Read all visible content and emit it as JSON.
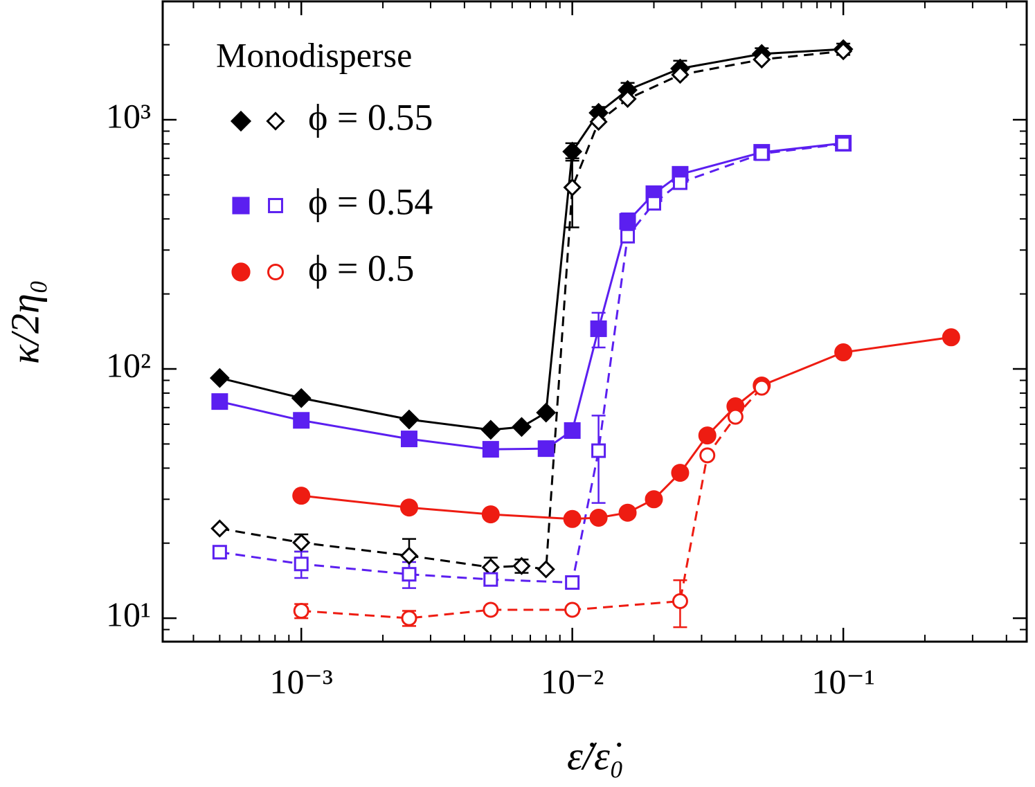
{
  "chart_data": {
    "type": "line",
    "xlabel": "ε̇/ε̇₀",
    "ylabel": "κ/2η₀",
    "legend_title": "Monodisperse",
    "legend_loc": "upper left",
    "xscale": "log",
    "yscale": "log",
    "xlim": [
      0.000308,
      0.475
    ],
    "ylim": [
      8.05,
      2985
    ],
    "xticks": [
      {
        "value": 0.001,
        "label": "10⁻³"
      },
      {
        "value": 0.01,
        "label": "10⁻²"
      },
      {
        "value": 0.1,
        "label": "10⁻¹"
      }
    ],
    "yticks": [
      {
        "value": 10,
        "label": "10¹"
      },
      {
        "value": 100,
        "label": "10²"
      },
      {
        "value": 1000,
        "label": "10³"
      }
    ],
    "series": [
      {
        "name": "ϕ = 0.55",
        "color": "#000000",
        "marker": "diamond",
        "filled": true,
        "linestyle": "solid",
        "x": [
          0.0005,
          0.001,
          0.0025,
          0.005,
          0.0065,
          0.008,
          0.01,
          0.0125,
          0.016,
          0.025,
          0.05,
          0.1
        ],
        "values": [
          92,
          76.4,
          62.7,
          57,
          58.5,
          66.8,
          745,
          1066,
          1316,
          1605,
          1837,
          1920
        ],
        "errors": [
          null,
          null,
          null,
          null,
          null,
          null,
          60,
          60,
          90,
          120,
          100,
          100
        ]
      },
      {
        "name": "ϕ = 0.55",
        "color": "#000000",
        "marker": "diamond",
        "filled": false,
        "linestyle": "dashed",
        "x": [
          0.0005,
          0.001,
          0.0025,
          0.005,
          0.0065,
          0.008,
          0.01,
          0.0125,
          0.016,
          0.025,
          0.05,
          0.1
        ],
        "values": [
          22.9,
          20.1,
          17.8,
          16,
          16.2,
          15.7,
          535,
          981,
          1212,
          1515,
          1745,
          1884
        ],
        "errors": [
          null,
          1.6,
          3,
          1.5,
          1,
          null,
          165,
          null,
          null,
          null,
          null,
          null
        ]
      },
      {
        "name": "ϕ = 0.54",
        "color": "#5b1ff0",
        "marker": "square",
        "filled": true,
        "linestyle": "solid",
        "x": [
          0.0005,
          0.001,
          0.0025,
          0.005,
          0.008,
          0.01,
          0.0125,
          0.016,
          0.02,
          0.025,
          0.05,
          0.1
        ],
        "values": [
          74,
          62.2,
          52.4,
          47.6,
          47.9,
          56.6,
          145,
          391,
          505,
          604,
          740,
          805
        ],
        "errors": [
          null,
          null,
          null,
          null,
          null,
          null,
          23,
          30,
          null,
          null,
          null,
          null
        ]
      },
      {
        "name": "ϕ = 0.54",
        "color": "#5b1ff0",
        "marker": "square",
        "filled": false,
        "linestyle": "dashed",
        "x": [
          0.0005,
          0.001,
          0.0025,
          0.005,
          0.01,
          0.0125,
          0.016,
          0.02,
          0.025,
          0.05,
          0.1
        ],
        "values": [
          18.4,
          16.5,
          15,
          14.3,
          13.9,
          47,
          341,
          462,
          559,
          731,
          800
        ],
        "errors": [
          null,
          2,
          1.8,
          null,
          null,
          18,
          null,
          null,
          null,
          null,
          null
        ]
      },
      {
        "name": "ϕ = 0.5",
        "color": "#ee1c12",
        "marker": "circle",
        "filled": true,
        "linestyle": "solid",
        "x": [
          0.001,
          0.0025,
          0.005,
          0.01,
          0.0125,
          0.016,
          0.02,
          0.025,
          0.0315,
          0.04,
          0.05,
          0.1,
          0.25
        ],
        "values": [
          31,
          27.8,
          26.1,
          25,
          25.3,
          26.5,
          30,
          38.3,
          54.1,
          70.8,
          85.8,
          116.6,
          134
        ],
        "errors": [
          null,
          null,
          null,
          null,
          null,
          null,
          null,
          null,
          null,
          null,
          null,
          null,
          null
        ]
      },
      {
        "name": "ϕ = 0.5",
        "color": "#ee1c12",
        "marker": "circle",
        "filled": false,
        "linestyle": "dashed",
        "x": [
          0.001,
          0.0025,
          0.005,
          0.01,
          0.025,
          0.0315,
          0.04,
          0.05
        ],
        "values": [
          10.7,
          10,
          10.8,
          10.8,
          11.7,
          45,
          64.3,
          84.1
        ],
        "errors": [
          0.7,
          0.7,
          null,
          null,
          2.5,
          null,
          null,
          null
        ]
      }
    ]
  }
}
